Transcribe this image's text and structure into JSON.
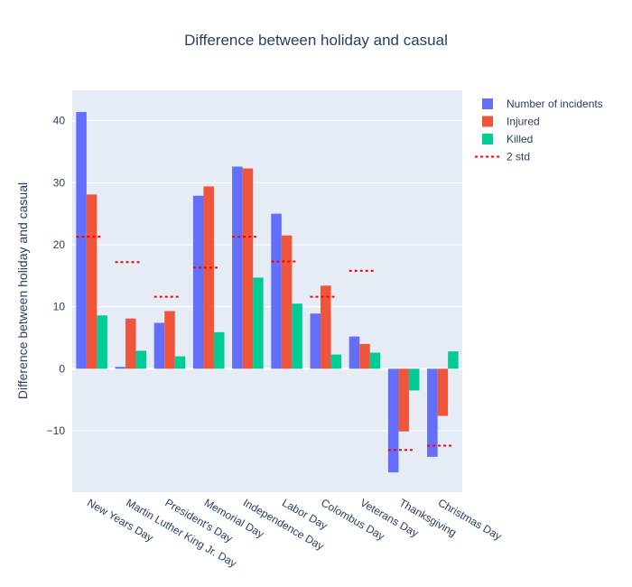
{
  "chart_data": {
    "type": "bar",
    "title": "Difference between holiday and casual",
    "xlabel": "",
    "ylabel": "Difference between holiday and casual",
    "categories": [
      "New Years Day",
      "Martin Luther King Jr. Day",
      "President's Day",
      "Memorial Day",
      "Independence Day",
      "Labor Day",
      "Colombus Day",
      "Veterans Day",
      "Thanksgiving",
      "Christmas Day"
    ],
    "series": [
      {
        "name": "Number of incidents",
        "color": "#636efa",
        "values": [
          41.4,
          0.3,
          7.4,
          27.9,
          32.6,
          25.0,
          8.9,
          5.2,
          -16.7,
          -14.2
        ]
      },
      {
        "name": "Injured",
        "color": "#ef553b",
        "values": [
          28.1,
          8.1,
          9.3,
          29.4,
          32.3,
          21.5,
          13.4,
          4.0,
          -10.1,
          -7.6
        ]
      },
      {
        "name": "Killed",
        "color": "#00cc96",
        "values": [
          8.6,
          2.9,
          2.0,
          5.9,
          14.7,
          10.5,
          2.3,
          2.6,
          -3.5,
          2.8
        ]
      }
    ],
    "threshold": {
      "name": "2 std",
      "color": "#ff0000",
      "values": [
        21.3,
        17.2,
        11.6,
        16.3,
        21.3,
        17.3,
        11.6,
        15.8,
        -13.1,
        -12.4
      ]
    },
    "yticks": [
      -10,
      0,
      10,
      20,
      30,
      40
    ],
    "ylim": [
      -19.9,
      44.9
    ],
    "grid": true,
    "legend": "top-right",
    "colors": {
      "plot_bg": "#e5ecf6",
      "grid": "#ffffff",
      "text": "#2a3f5f"
    }
  }
}
